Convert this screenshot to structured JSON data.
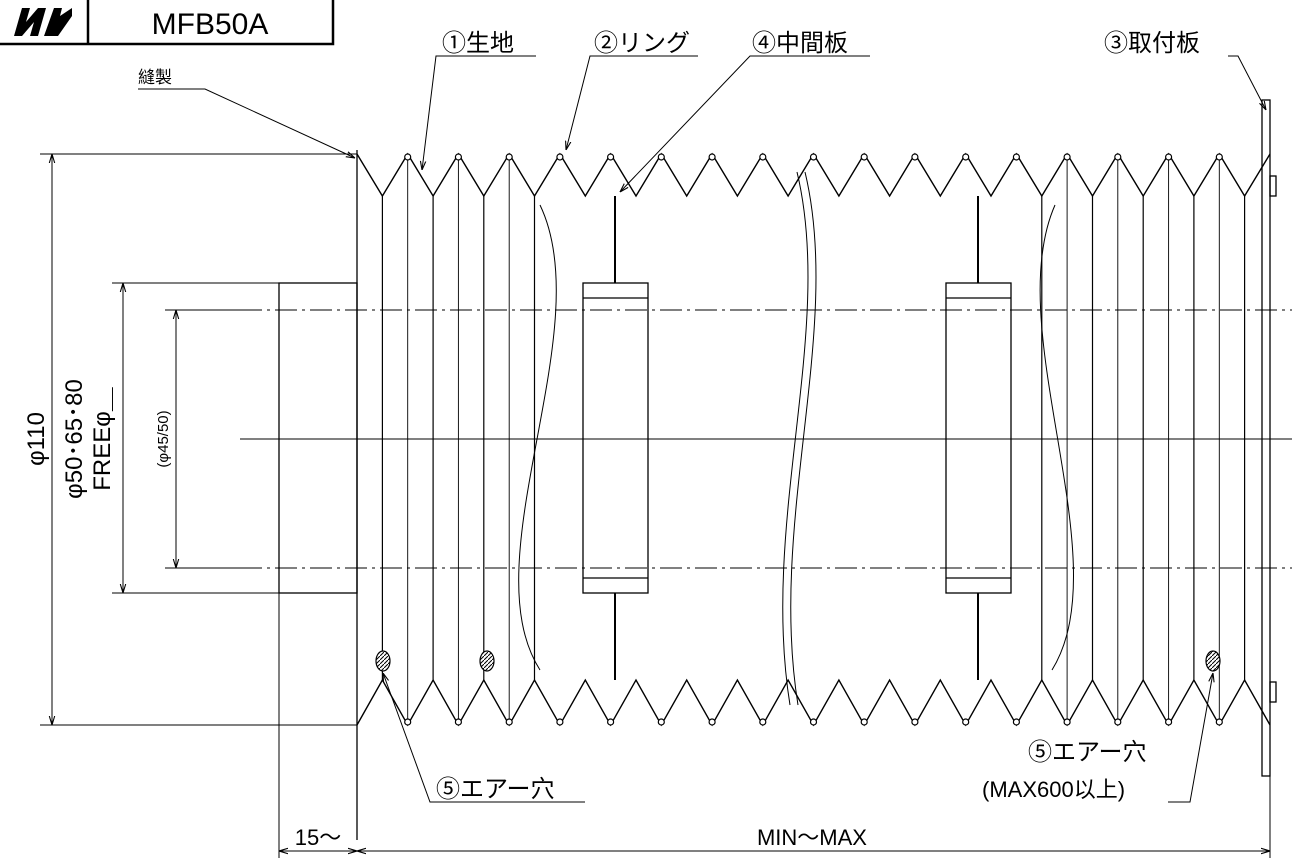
{
  "title_block": {
    "logo_text": "M",
    "model": "MFB50A"
  },
  "parts": {
    "fabric": "①生地",
    "ring": "②リング",
    "mount_plate": "③取付板",
    "middle_plate": "④中間板",
    "air_hole_left": "⑤エアー穴",
    "air_hole_right": "⑤エアー穴",
    "air_hole_note": "(MAX600以上)"
  },
  "notes": {
    "sewing": "縫製"
  },
  "dimensions": {
    "outer_dia": "φ110",
    "inner_dia": "φ50･65･80",
    "free_dia": "FREEφ＿",
    "bore_dia": "(φ45/50)",
    "flange_len": "15～",
    "stroke": "MIN～MAX"
  }
}
